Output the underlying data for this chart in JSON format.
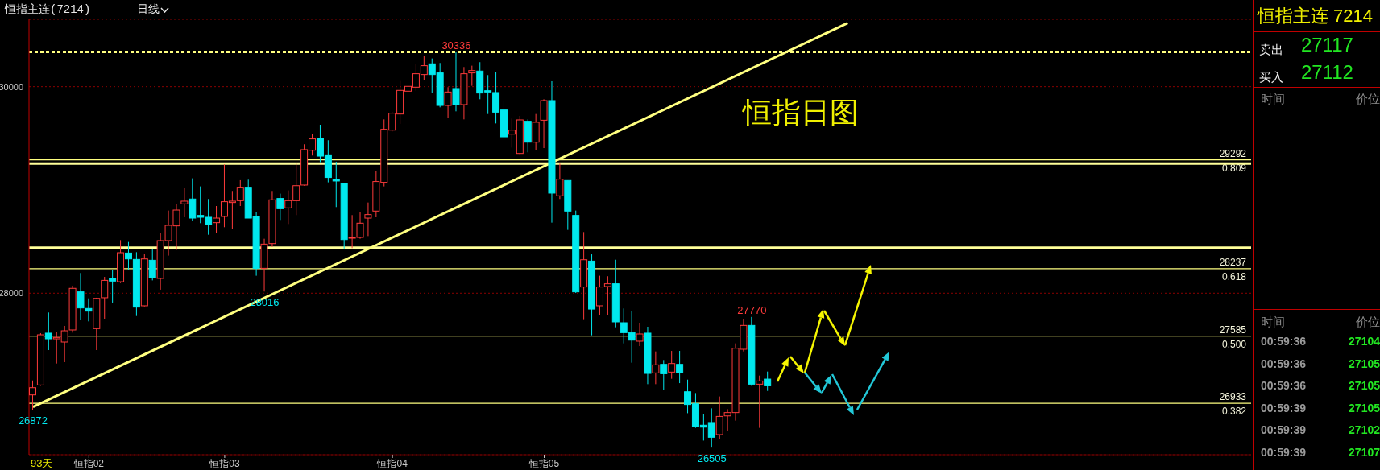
{
  "chart_data": [
    {
      "type": "candlestick",
      "title": "恒指主连(7214)",
      "subtitle": "日线",
      "categories": [
        null,
        null,
        null,
        null,
        null,
        null,
        null,
        "恒指02",
        null,
        null,
        null,
        null,
        null,
        null,
        null,
        null,
        null,
        null,
        null,
        null,
        null,
        null,
        null,
        null,
        "恒指03",
        null,
        null,
        null,
        null,
        null,
        null,
        null,
        null,
        null,
        null,
        null,
        null,
        null,
        null,
        null,
        null,
        null,
        null,
        null,
        null,
        "恒指04",
        null,
        null,
        null,
        null,
        null,
        null,
        null,
        null,
        null,
        null,
        null,
        null,
        null,
        null,
        null,
        null,
        null,
        null,
        "恒指05",
        null,
        null,
        null,
        null,
        null,
        null,
        null,
        null,
        null,
        null,
        null,
        null,
        null,
        null,
        null,
        null,
        null,
        null,
        null,
        null,
        null,
        null,
        null,
        null,
        null,
        null,
        null,
        null,
        null,
        null,
        null,
        null,
        null,
        null,
        null,
        null,
        null,
        null,
        null,
        null,
        null,
        null,
        null,
        null,
        null,
        null,
        null,
        null,
        null,
        null,
        null,
        null,
        null,
        null,
        null,
        null,
        null,
        null,
        null,
        null,
        null,
        null,
        null,
        null,
        null,
        null,
        null,
        null,
        null,
        null,
        null,
        null,
        null,
        null,
        null,
        null,
        null,
        null,
        null,
        null,
        null,
        null,
        null,
        null,
        null,
        null,
        null,
        null
      ],
      "ohlc": [
        [
          27015,
          27155,
          26872,
          27085
        ],
        [
          27111,
          27613,
          27103,
          27597
        ],
        [
          27613,
          27813,
          27449,
          27558
        ],
        [
          27558,
          27623,
          27319,
          27571
        ],
        [
          27527,
          27683,
          27332,
          27636
        ],
        [
          27644,
          28073,
          27618,
          28047
        ],
        [
          28013,
          28195,
          27740,
          27857
        ],
        [
          27852,
          27950,
          27727,
          27826
        ],
        [
          27657,
          27956,
          27449,
          27950
        ],
        [
          27956,
          28158,
          27753,
          28124
        ],
        [
          28143,
          28223,
          27909,
          28117
        ],
        [
          28111,
          28514,
          28098,
          28392
        ],
        [
          28389,
          28496,
          28221,
          28332
        ],
        [
          28327,
          28397,
          27779,
          27865
        ],
        [
          27878,
          28384,
          27872,
          28332
        ],
        [
          28319,
          28428,
          28124,
          28150
        ],
        [
          28143,
          28579,
          28034,
          28509
        ],
        [
          28509,
          28800,
          28364,
          28657
        ],
        [
          28652,
          28865,
          28418,
          28805
        ],
        [
          28865,
          29021,
          28735,
          28891
        ],
        [
          28912,
          29112,
          28701,
          28727
        ],
        [
          28753,
          29034,
          28678,
          28735
        ],
        [
          28735,
          28912,
          28566,
          28665
        ],
        [
          28683,
          28844,
          28579,
          28727
        ],
        [
          28743,
          29247,
          28639,
          28886
        ],
        [
          28878,
          28990,
          28618,
          28891
        ],
        [
          28896,
          29094,
          28844,
          29026
        ],
        [
          29026,
          29099,
          28727,
          28727
        ],
        [
          28743,
          28782,
          28169,
          28241
        ],
        [
          28241,
          28527,
          28016,
          28475
        ],
        [
          28480,
          28990,
          28449,
          28904
        ],
        [
          28917,
          28964,
          28709,
          28818
        ],
        [
          28826,
          28995,
          28670,
          28896
        ],
        [
          28896,
          29255,
          28756,
          29041
        ],
        [
          29047,
          29442,
          29041,
          29390
        ],
        [
          29384,
          29540,
          29333,
          29494
        ],
        [
          29501,
          29631,
          29268,
          29327
        ],
        [
          29340,
          29481,
          29073,
          29120
        ],
        [
          29104,
          29273,
          28834,
          29086
        ],
        [
          29065,
          29065,
          28423,
          28519
        ],
        [
          28538,
          28756,
          28436,
          28540
        ],
        [
          28540,
          28787,
          28527,
          28678
        ],
        [
          28727,
          28878,
          28553,
          28761
        ],
        [
          28795,
          29182,
          28735,
          29081
        ],
        [
          29073,
          29683,
          29034,
          29587
        ],
        [
          29579,
          29753,
          29566,
          29743
        ],
        [
          29735,
          30055,
          29639,
          29964
        ],
        [
          29956,
          30133,
          29808,
          30003
        ],
        [
          29995,
          30216,
          29961,
          30125
        ],
        [
          30117,
          30294,
          30065,
          30203
        ],
        [
          30221,
          30273,
          29935,
          30117
        ],
        [
          30133,
          30229,
          29800,
          29818
        ],
        [
          29818,
          29995,
          29696,
          29948
        ],
        [
          29982,
          30336,
          29761,
          29826
        ],
        [
          29826,
          30190,
          29683,
          30125
        ],
        [
          30133,
          30203,
          30008,
          30156
        ],
        [
          30151,
          30237,
          29878,
          29938
        ],
        [
          29961,
          30112,
          29735,
          29948
        ],
        [
          29943,
          30138,
          29644,
          29753
        ],
        [
          29774,
          29857,
          29501,
          29514
        ],
        [
          29540,
          29691,
          29410,
          29579
        ],
        [
          29353,
          29717,
          29345,
          29678
        ],
        [
          29665,
          29683,
          29364,
          29462
        ],
        [
          29462,
          29735,
          29384,
          29655
        ],
        [
          29675,
          29878,
          29405,
          29865
        ],
        [
          29865,
          30052,
          28683,
          28969
        ],
        [
          28943,
          29255,
          28912,
          29104
        ],
        [
          29091,
          29091,
          28613,
          28795
        ],
        [
          28753,
          28800,
          28002,
          28013
        ],
        [
          28060,
          28592,
          27748,
          28324
        ],
        [
          28311,
          28376,
          27592,
          27846
        ],
        [
          27878,
          28169,
          27787,
          28060
        ],
        [
          28065,
          28164,
          27787,
          28091
        ],
        [
          28091,
          28324,
          27670,
          27722
        ],
        [
          27714,
          27852,
          27514,
          27618
        ],
        [
          27618,
          27826,
          27327,
          27545
        ],
        [
          27535,
          27714,
          27488,
          27605
        ],
        [
          27613,
          27675,
          27119,
          27223
        ],
        [
          27228,
          27436,
          27119,
          27306
        ],
        [
          27311,
          27353,
          27064,
          27220
        ],
        [
          27236,
          27441,
          27171,
          27319
        ],
        [
          27311,
          27441,
          27129,
          27228
        ],
        [
          27046,
          27163,
          26838,
          26922
        ],
        [
          26929,
          27033,
          26696,
          26709
        ],
        [
          26722,
          26833,
          26573,
          26703
        ],
        [
          26748,
          26885,
          26505,
          26605
        ],
        [
          26631,
          27000,
          26584,
          26807
        ],
        [
          26812,
          26877,
          26670,
          26844
        ],
        [
          26844,
          27514,
          26766,
          27467
        ],
        [
          27457,
          27753,
          27436,
          27688
        ],
        [
          27688,
          27770,
          27103,
          27119
        ],
        [
          27119,
          27202,
          26696,
          27150
        ],
        [
          27168,
          27241,
          27054,
          27103
        ],
        null,
        null,
        null,
        null,
        null,
        null,
        null,
        null,
        null,
        null,
        null,
        null,
        null,
        null,
        null,
        null,
        null,
        null,
        null,
        null,
        null,
        null,
        null,
        null,
        null,
        null,
        null,
        null,
        null,
        null,
        null,
        null,
        null,
        null,
        null,
        null,
        null,
        null,
        null,
        null,
        null,
        null,
        null,
        null,
        null,
        null,
        null,
        null,
        null,
        null,
        null,
        null,
        null,
        null,
        null,
        null,
        null,
        null,
        null,
        null
      ],
      "series": [
        {
          "type": "line",
          "color": "#ffff80",
          "values": [
            26898,
            null,
            null,
            null,
            null,
            null,
            null,
            null,
            null,
            null,
            null,
            null,
            null,
            null,
            null,
            null,
            null,
            null,
            null,
            null,
            null,
            null,
            null,
            null,
            null,
            null,
            null,
            null,
            null,
            null,
            null,
            null,
            null,
            null,
            null,
            null,
            null,
            null,
            null,
            null,
            null,
            null,
            null,
            null,
            null,
            null,
            null,
            null,
            null,
            null,
            null,
            null,
            null,
            null,
            null,
            null,
            null,
            null,
            null,
            null,
            null,
            null,
            null,
            null,
            null,
            null,
            null,
            null,
            null,
            null,
            null,
            null,
            null,
            null,
            null,
            null,
            null,
            null,
            null,
            null,
            null,
            null,
            null,
            null,
            null,
            null,
            null,
            null,
            null,
            null,
            null,
            null,
            null,
            null,
            null,
            null,
            null,
            null,
            null,
            null,
            null,
            null,
            30616,
            null,
            null,
            null,
            null,
            null,
            null,
            null,
            null,
            null,
            null,
            null,
            null,
            null,
            null,
            null,
            null,
            null,
            null,
            null,
            null,
            null,
            null,
            null,
            null,
            null,
            null,
            null,
            null,
            null,
            null,
            null,
            null,
            null,
            null,
            null,
            null,
            null,
            null,
            null,
            null,
            null,
            null,
            null,
            null,
            null,
            null,
            null,
            null,
            null,
            null
          ]
        }
      ],
      "ylim": [
        26436,
        30652
      ],
      "yticks": [
        28000,
        30000
      ],
      "grid": "y",
      "ref_lines": [
        {
          "axis": "y",
          "value": 30336,
          "line_style": "dashed",
          "color": "#ffff80"
        },
        {
          "axis": "y",
          "value": 29292,
          "label": "29292 0.809",
          "color": "#ffff80"
        },
        {
          "axis": "y",
          "value": 29255,
          "color": "#ffff99"
        },
        {
          "axis": "y",
          "value": 28441,
          "color": "#ffff99"
        },
        {
          "axis": "y",
          "value": 28237,
          "label": "28237 0.618",
          "color": "#ffff80"
        },
        {
          "axis": "y",
          "value": 27585,
          "label": "27585 0.500",
          "color": "#ffff80"
        },
        {
          "axis": "y",
          "value": 26933,
          "label": "26933 0.382",
          "color": "#ffff80"
        }
      ],
      "annotations": [
        "恒指日图",
        "93天",
        {
          "text": "30336",
          "y": 30336
        },
        {
          "text": "28016",
          "y": 28016
        },
        {
          "text": "27770",
          "y": 27770
        },
        {
          "text": "26505",
          "y": 26505
        },
        {
          "text": "26872",
          "y": 26872
        }
      ]
    },
    {
      "type": "other",
      "title": "恒指主连 7214",
      "annotations": [
        "卖出 27117",
        "买入 27112",
        "时间 价位",
        "时间 价位",
        "00:59:36 27104",
        "00:59:36 27105",
        "00:59:36 27105",
        "00:59:39 27105",
        "00:59:39 27102",
        "00:59:39 27107"
      ]
    }
  ]
}
